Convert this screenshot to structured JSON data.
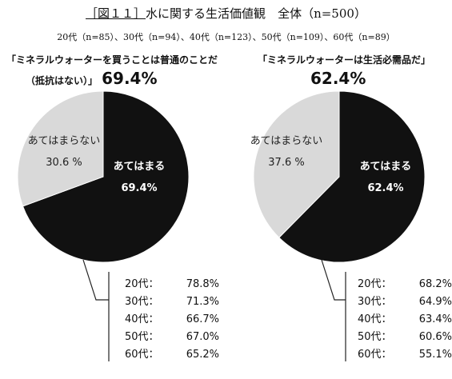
{
  "title_prefix": "［図１１］",
  "title_main": "水に関する生活価値観",
  "title_total": "全体（n=500）",
  "sample_line": "20代（n=85）、30代（n=94）、40代（n=123）、50代（n=109）、60代（n=89）",
  "chart_data": [
    {
      "type": "pie",
      "question_line1": "「ミネラルウォーターを買うことは普通のことだ",
      "question_line2": "（抵抗はない）」",
      "headline_value": "69.4%",
      "slices": [
        {
          "label": "あてはまる",
          "value": 69.4,
          "value_text": "69.4%",
          "color": "#111111"
        },
        {
          "label": "あてはまらない",
          "value": 30.6,
          "value_text": "30.6 %",
          "color": "#d9d9d9"
        }
      ],
      "breakdown": [
        {
          "age": "20代：",
          "value": "78.8%"
        },
        {
          "age": "30代：",
          "value": "71.3%"
        },
        {
          "age": "40代：",
          "value": "66.7%"
        },
        {
          "age": "50代：",
          "value": "67.0%"
        },
        {
          "age": "60代：",
          "value": "65.2%"
        }
      ]
    },
    {
      "type": "pie",
      "question_line1": "「ミネラルウォーターは生活必需品だ」",
      "headline_value": "62.4%",
      "slices": [
        {
          "label": "あてはまる",
          "value": 62.4,
          "value_text": "62.4%",
          "color": "#111111"
        },
        {
          "label": "あてはまらない",
          "value": 37.6,
          "value_text": "37.6 %",
          "color": "#d9d9d9"
        }
      ],
      "breakdown": [
        {
          "age": "20代：",
          "value": "68.2%"
        },
        {
          "age": "30代：",
          "value": "64.9%"
        },
        {
          "age": "40代：",
          "value": "63.4%"
        },
        {
          "age": "50代：",
          "value": "60.6%"
        },
        {
          "age": "60代：",
          "value": "55.1%"
        }
      ]
    }
  ]
}
